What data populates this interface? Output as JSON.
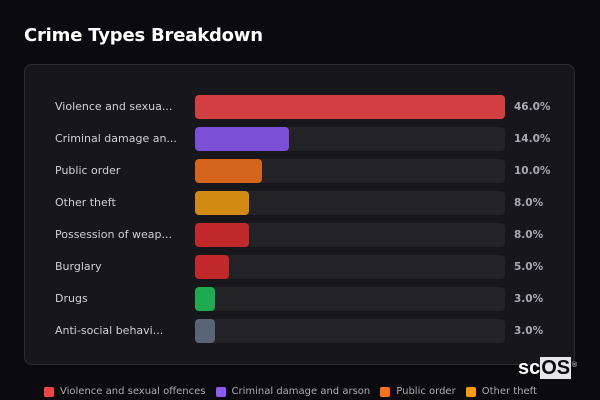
{
  "header": {
    "title": "Crime Types Breakdown"
  },
  "rows": [
    {
      "label": "Violence and sexua...",
      "value": 46.0,
      "pct_label": "46.0%",
      "color": "#d13f43"
    },
    {
      "label": "Criminal damage an...",
      "value": 14.0,
      "pct_label": "14.0%",
      "color": "#7b4fd6"
    },
    {
      "label": "Public order",
      "value": 10.0,
      "pct_label": "10.0%",
      "color": "#d5641c"
    },
    {
      "label": "Other theft",
      "value": 8.0,
      "pct_label": "8.0%",
      "color": "#d38a14"
    },
    {
      "label": "Possession of weap...",
      "value": 8.0,
      "pct_label": "8.0%",
      "color": "#c0282b"
    },
    {
      "label": "Burglary",
      "value": 5.0,
      "pct_label": "5.0%",
      "color": "#c0282b"
    },
    {
      "label": "Drugs",
      "value": 3.0,
      "pct_label": "3.0%",
      "color": "#1eaa50"
    },
    {
      "label": "Anti-social behavi...",
      "value": 3.0,
      "pct_label": "3.0%",
      "color": "#5b6477"
    }
  ],
  "legend": [
    {
      "label": "Violence and sexual offences",
      "color": "#ef4444"
    },
    {
      "label": "Criminal damage and arson",
      "color": "#8b5cf6"
    },
    {
      "label": "Public order",
      "color": "#f97316"
    },
    {
      "label": "Other theft",
      "color": "#f59e0b"
    }
  ],
  "brand": {
    "prefix": "sc",
    "suffix": "OS",
    "mark": "®"
  },
  "chart_data": {
    "type": "bar",
    "orientation": "horizontal",
    "title": "Crime Types Breakdown",
    "categories": [
      "Violence and sexual offences",
      "Criminal damage and arson",
      "Public order",
      "Other theft",
      "Possession of weapons",
      "Burglary",
      "Drugs",
      "Anti-social behaviour"
    ],
    "display_labels": [
      "Violence and sexua...",
      "Criminal damage an...",
      "Public order",
      "Other theft",
      "Possession of weap...",
      "Burglary",
      "Drugs",
      "Anti-social behavi..."
    ],
    "values": [
      46.0,
      14.0,
      10.0,
      8.0,
      8.0,
      5.0,
      3.0,
      3.0
    ],
    "unit": "%",
    "xlabel": "",
    "ylabel": "",
    "xlim": [
      0,
      46
    ],
    "grid": false,
    "legend_position": "bottom",
    "legend": [
      "Violence and sexual offences",
      "Criminal damage and arson",
      "Public order",
      "Other theft"
    ]
  }
}
